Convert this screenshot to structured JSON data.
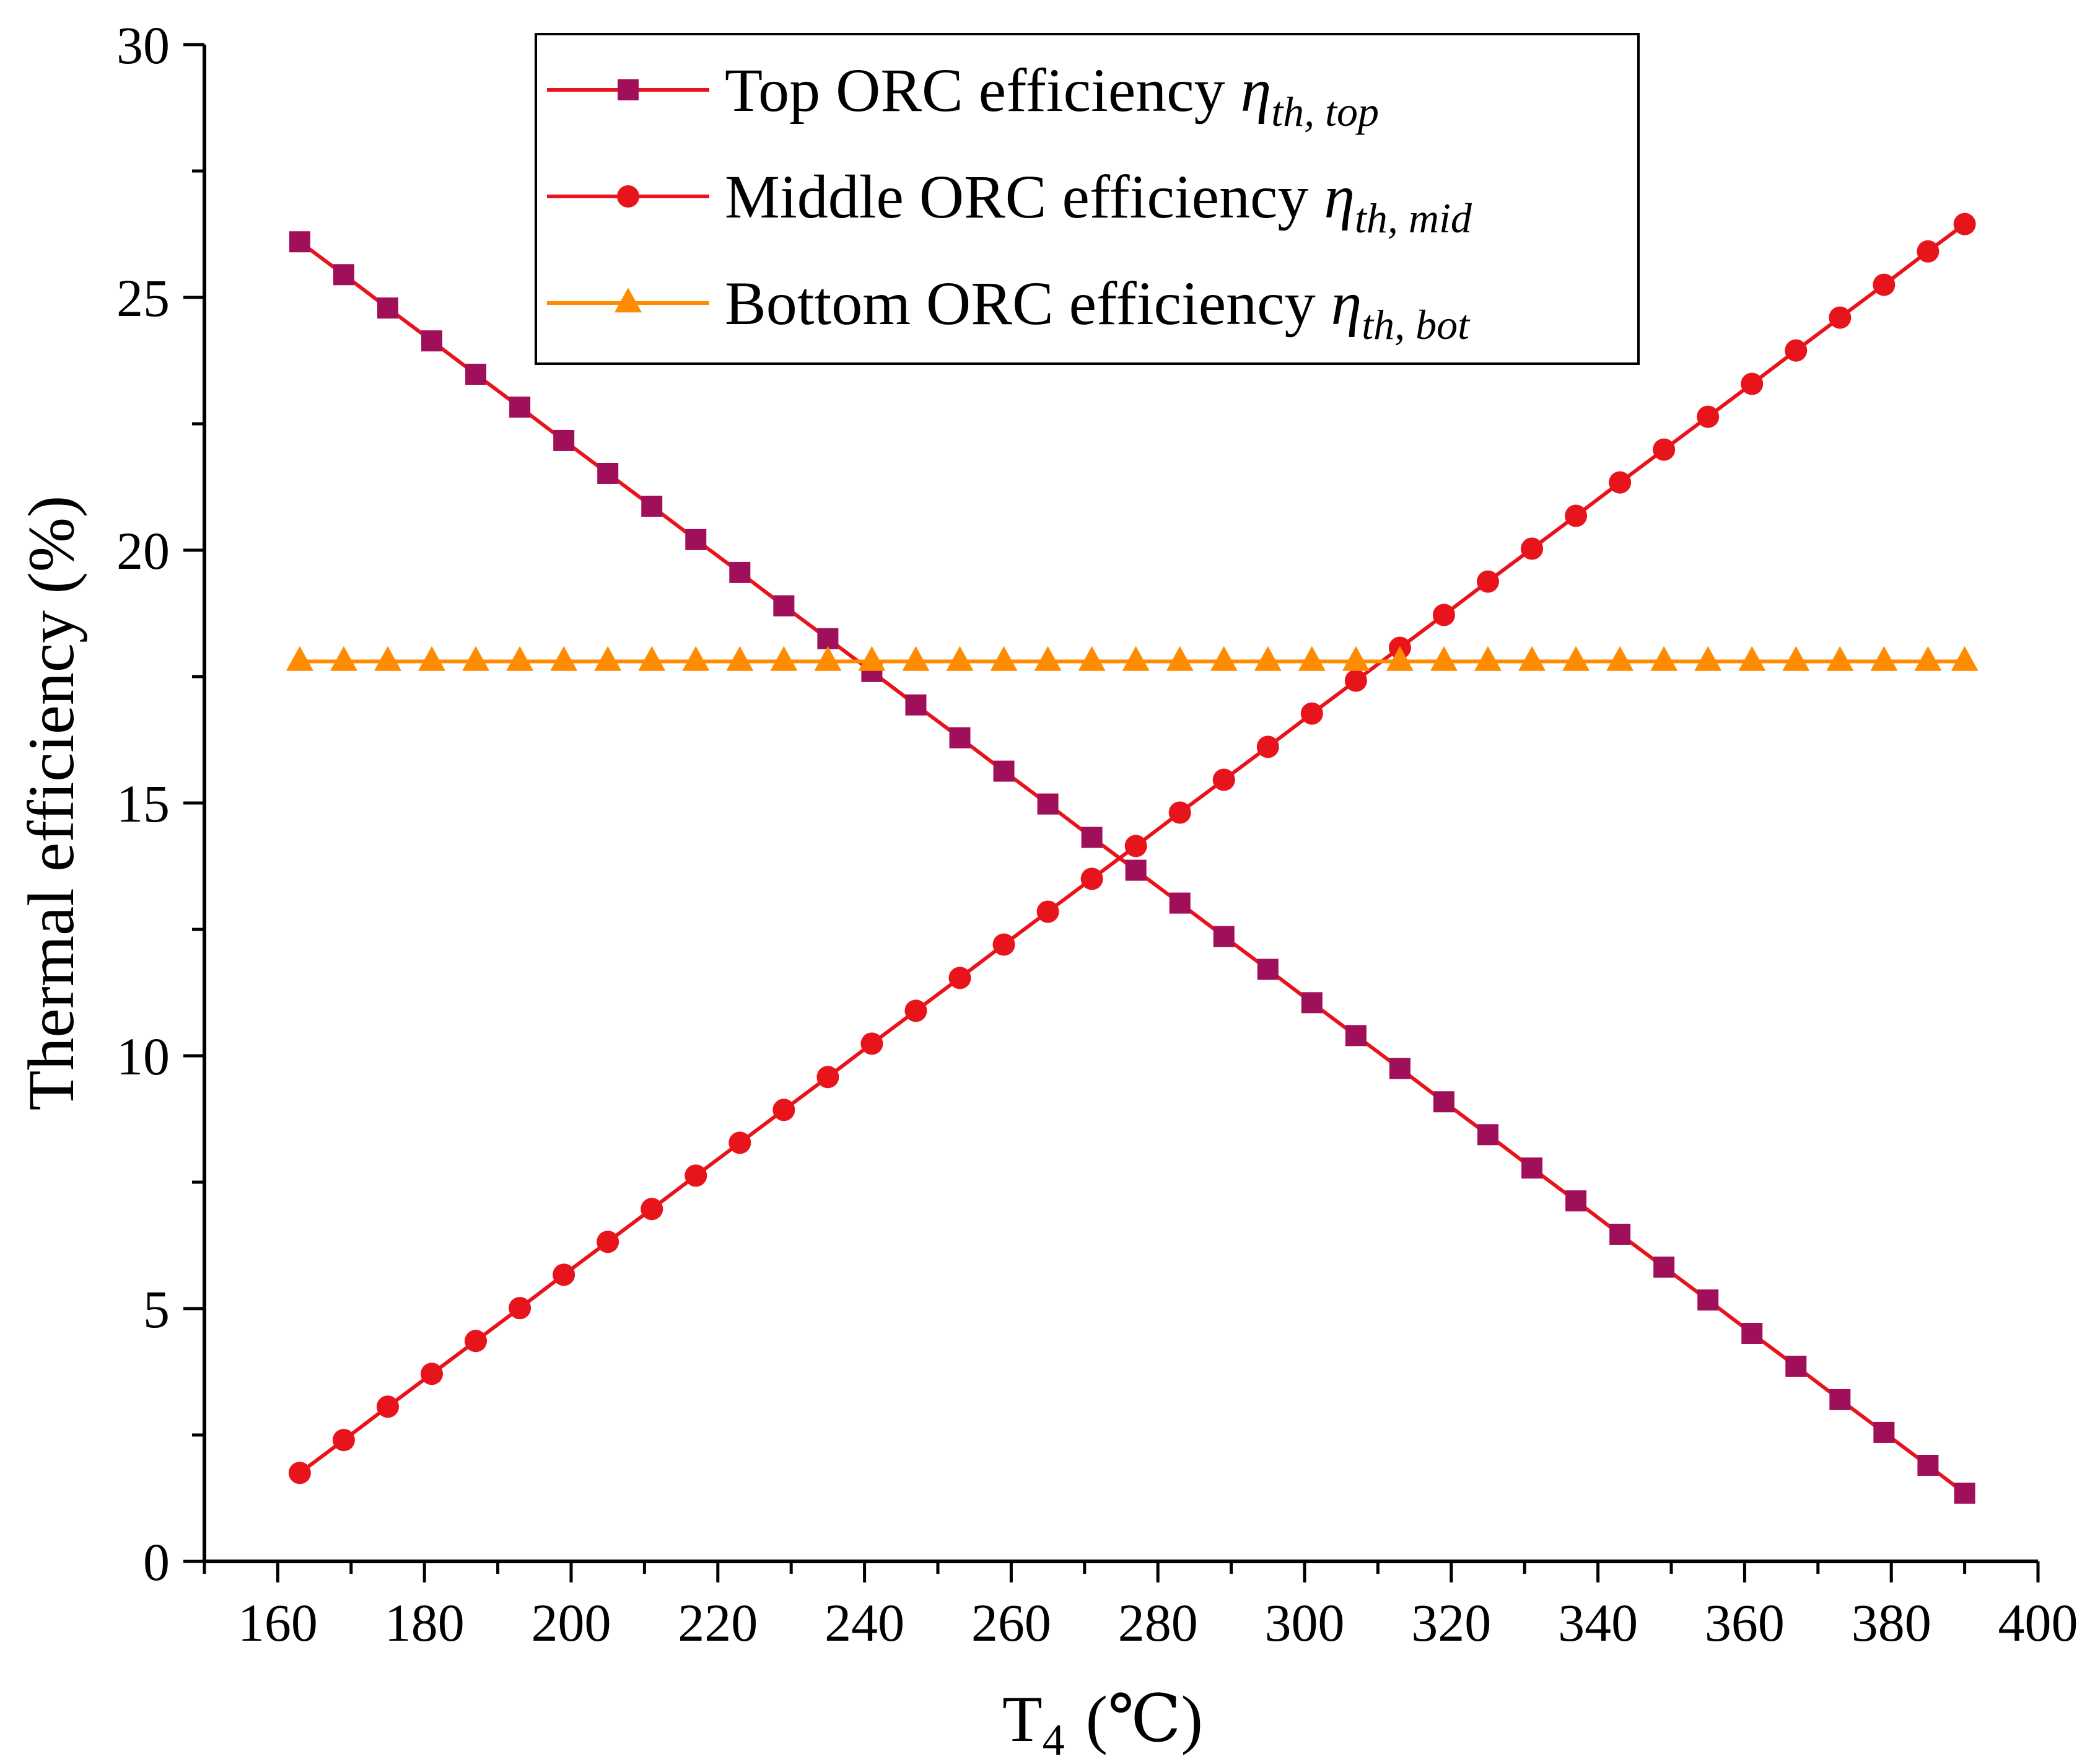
{
  "chart_data": {
    "type": "line",
    "title": "",
    "xlabel": "T",
    "xlabel_subscript": "4",
    "xlabel_unit": "(℃)",
    "ylabel": "Thermal efficiency (%)",
    "xlim": [
      150,
      400
    ],
    "ylim": [
      0,
      30
    ],
    "xticks": [
      160,
      180,
      200,
      220,
      240,
      260,
      280,
      300,
      320,
      340,
      360,
      380,
      400
    ],
    "xtick_labels": [
      "160",
      "180",
      "200",
      "220",
      "240",
      "260",
      "280",
      "300",
      "320",
      "340",
      "360",
      "380",
      "400"
    ],
    "yticks": [
      0,
      5,
      10,
      15,
      20,
      25,
      30
    ],
    "ytick_labels": [
      "0",
      "5",
      "10",
      "15",
      "20",
      "25",
      "30"
    ],
    "grid": false,
    "legend_position": "top-center",
    "x": [
      163,
      169,
      175,
      181,
      187,
      193,
      199,
      205,
      211,
      217,
      223,
      229,
      235,
      241,
      247,
      253,
      259,
      265,
      271,
      277,
      283,
      289,
      295,
      301,
      307,
      313,
      319,
      325,
      331,
      337,
      343,
      349,
      355,
      361,
      367,
      373,
      379,
      385,
      390
    ],
    "series": [
      {
        "name": "Top ORC efficiency",
        "symbol": "η",
        "symbol_subscript": "th, top",
        "color": "#A0105A",
        "line_color": "#E8141C",
        "marker": "square",
        "start": 26.1,
        "end": 1.35
      },
      {
        "name": "Middle ORC efficiency",
        "symbol": "η",
        "symbol_subscript": "th, mid",
        "color": "#E8141C",
        "line_color": "#E8141C",
        "marker": "circle",
        "start": 1.75,
        "end": 26.45
      },
      {
        "name": "Bottom ORC efficiency",
        "symbol": "η",
        "symbol_subscript": "th, bot",
        "color": "#FF8C00",
        "line_color": "#FF8C00",
        "marker": "triangle",
        "start": 17.8,
        "end": 17.8
      }
    ]
  }
}
